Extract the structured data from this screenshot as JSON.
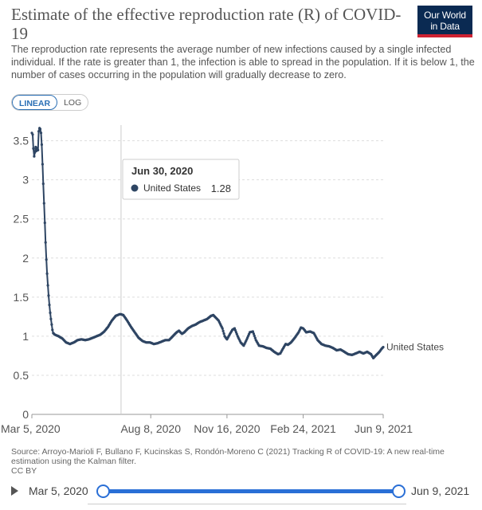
{
  "header": {
    "title": "Estimate of the effective reproduction rate (R) of COVID-19",
    "subtitle": "The reproduction rate represents the average number of new infections caused by a single infected individual. If the rate is greater than 1, the infection is able to spread in the population. If it is below 1, the number of cases occurring in the population will gradually decrease to zero.",
    "logo_line1": "Our World",
    "logo_line2": "in Data"
  },
  "controls": {
    "linear_label": "LINEAR",
    "log_label": "LOG"
  },
  "tooltip": {
    "date": "Jun 30, 2020",
    "series": "United States",
    "value": "1.28"
  },
  "footer": {
    "source": "Source: Arroyo-Marioli F, Bullano F, Kucinskas S, Rondón-Moreno C (2021) Tracking R of COVID-19: A new real-time estimation using the Kalman filter.",
    "license": "CC BY"
  },
  "timeline": {
    "start_label": "Mar 5, 2020",
    "end_label": "Jun 9, 2021"
  },
  "colors": {
    "series": "#2e4563",
    "grid": "#dddddd",
    "accent": "#2a6fd6"
  },
  "chart_data": {
    "type": "line",
    "title": "Estimate of the effective reproduction rate (R) of COVID-19",
    "xlabel": "",
    "ylabel": "",
    "ylim": [
      0,
      3.7
    ],
    "yticks": [
      0,
      0.5,
      1,
      1.5,
      2,
      2.5,
      3,
      3.5
    ],
    "ytick_labels": [
      "0",
      "0.5",
      "1",
      "1.5",
      "2",
      "2.5",
      "3",
      "3.5"
    ],
    "xticks": [
      0,
      156,
      256,
      356,
      461
    ],
    "xtick_labels": [
      "Mar 5, 2020",
      "Aug 8, 2020",
      "Nov 16, 2020",
      "Feb 24, 2021",
      "Jun 9, 2021"
    ],
    "x_unit": "days since Mar 5, 2020",
    "highlight_x": 117,
    "series": [
      {
        "name": "United States",
        "points": [
          [
            0,
            3.6
          ],
          [
            1,
            3.58
          ],
          [
            2,
            3.4
          ],
          [
            3,
            3.3
          ],
          [
            4,
            3.35
          ],
          [
            5,
            3.42
          ],
          [
            6,
            3.37
          ],
          [
            7,
            3.4
          ],
          [
            8,
            3.38
          ],
          [
            9,
            3.62
          ],
          [
            10,
            3.66
          ],
          [
            11,
            3.65
          ],
          [
            12,
            3.6
          ],
          [
            13,
            3.45
          ],
          [
            14,
            3.2
          ],
          [
            15,
            2.95
          ],
          [
            16,
            2.7
          ],
          [
            17,
            2.45
          ],
          [
            18,
            2.2
          ],
          [
            19,
            1.98
          ],
          [
            20,
            1.8
          ],
          [
            21,
            1.65
          ],
          [
            22,
            1.52
          ],
          [
            23,
            1.4
          ],
          [
            24,
            1.3
          ],
          [
            25,
            1.22
          ],
          [
            26,
            1.15
          ],
          [
            27,
            1.08
          ],
          [
            28,
            1.04
          ],
          [
            30,
            1.02
          ],
          [
            35,
            1.0
          ],
          [
            40,
            0.97
          ],
          [
            45,
            0.92
          ],
          [
            50,
            0.9
          ],
          [
            55,
            0.92
          ],
          [
            60,
            0.95
          ],
          [
            65,
            0.96
          ],
          [
            70,
            0.95
          ],
          [
            75,
            0.96
          ],
          [
            80,
            0.98
          ],
          [
            85,
            1.0
          ],
          [
            90,
            1.02
          ],
          [
            95,
            1.06
          ],
          [
            100,
            1.12
          ],
          [
            105,
            1.2
          ],
          [
            110,
            1.26
          ],
          [
            115,
            1.28
          ],
          [
            117,
            1.28
          ],
          [
            120,
            1.27
          ],
          [
            125,
            1.2
          ],
          [
            130,
            1.12
          ],
          [
            135,
            1.05
          ],
          [
            140,
            0.98
          ],
          [
            145,
            0.94
          ],
          [
            150,
            0.92
          ],
          [
            155,
            0.92
          ],
          [
            160,
            0.9
          ],
          [
            165,
            0.91
          ],
          [
            170,
            0.93
          ],
          [
            175,
            0.95
          ],
          [
            180,
            0.95
          ],
          [
            185,
            1.0
          ],
          [
            190,
            1.05
          ],
          [
            193,
            1.07
          ],
          [
            195,
            1.05
          ],
          [
            197,
            1.03
          ],
          [
            200,
            1.05
          ],
          [
            205,
            1.1
          ],
          [
            210,
            1.13
          ],
          [
            215,
            1.15
          ],
          [
            220,
            1.18
          ],
          [
            225,
            1.2
          ],
          [
            230,
            1.22
          ],
          [
            235,
            1.26
          ],
          [
            238,
            1.27
          ],
          [
            240,
            1.25
          ],
          [
            245,
            1.2
          ],
          [
            250,
            1.1
          ],
          [
            253,
            1.0
          ],
          [
            256,
            0.96
          ],
          [
            260,
            1.03
          ],
          [
            263,
            1.08
          ],
          [
            266,
            1.1
          ],
          [
            270,
            1.0
          ],
          [
            274,
            0.92
          ],
          [
            278,
            0.88
          ],
          [
            282,
            0.96
          ],
          [
            286,
            1.05
          ],
          [
            290,
            1.06
          ],
          [
            294,
            0.95
          ],
          [
            298,
            0.88
          ],
          [
            303,
            0.87
          ],
          [
            308,
            0.85
          ],
          [
            313,
            0.84
          ],
          [
            318,
            0.8
          ],
          [
            323,
            0.77
          ],
          [
            326,
            0.78
          ],
          [
            330,
            0.85
          ],
          [
            333,
            0.9
          ],
          [
            336,
            0.89
          ],
          [
            340,
            0.92
          ],
          [
            345,
            0.98
          ],
          [
            350,
            1.05
          ],
          [
            353,
            1.11
          ],
          [
            356,
            1.1
          ],
          [
            360,
            1.05
          ],
          [
            365,
            1.06
          ],
          [
            370,
            1.04
          ],
          [
            375,
            0.95
          ],
          [
            380,
            0.9
          ],
          [
            385,
            0.88
          ],
          [
            390,
            0.87
          ],
          [
            395,
            0.85
          ],
          [
            400,
            0.82
          ],
          [
            405,
            0.83
          ],
          [
            410,
            0.8
          ],
          [
            415,
            0.77
          ],
          [
            420,
            0.76
          ],
          [
            425,
            0.78
          ],
          [
            430,
            0.8
          ],
          [
            435,
            0.78
          ],
          [
            440,
            0.8
          ],
          [
            445,
            0.77
          ],
          [
            448,
            0.72
          ],
          [
            452,
            0.76
          ],
          [
            456,
            0.8
          ],
          [
            459,
            0.84
          ],
          [
            461,
            0.86
          ]
        ]
      }
    ]
  }
}
